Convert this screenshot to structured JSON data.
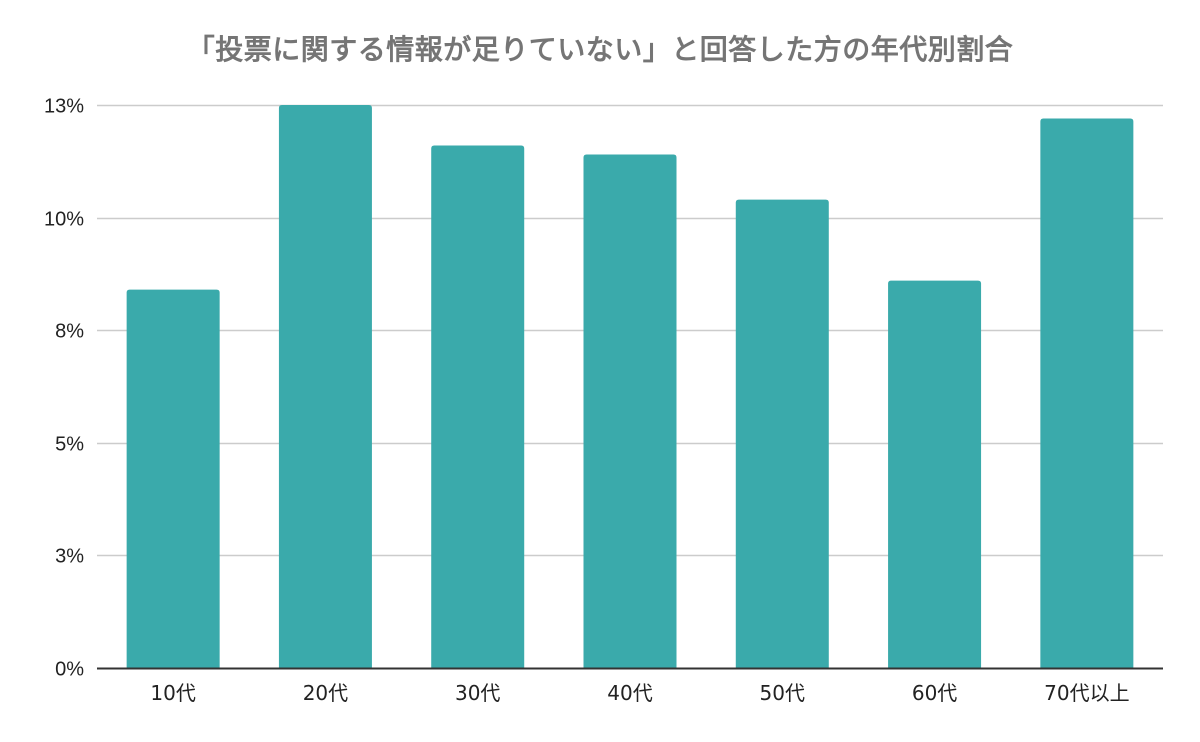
{
  "chart_data": {
    "type": "bar",
    "title": "「投票に関する情報が足りていない」と回答した方の年代別割合",
    "xlabel": "",
    "ylabel": "",
    "categories": [
      "10代",
      "20代",
      "30代",
      "40代",
      "50代",
      "60代",
      "70代以上"
    ],
    "values": [
      8.4,
      12.5,
      11.6,
      11.4,
      10.4,
      8.6,
      12.2
    ],
    "ylim": [
      0,
      12.5
    ],
    "yticks": [
      0,
      2.5,
      5,
      7.5,
      10,
      12.5
    ],
    "ytick_labels": [
      "0%",
      "3%",
      "5%",
      "8%",
      "10%",
      "13%"
    ],
    "grid": true,
    "legend": "none",
    "bar_color": "#3aaaab",
    "grid_color": "#cccccc",
    "axis_color": "#333333"
  }
}
